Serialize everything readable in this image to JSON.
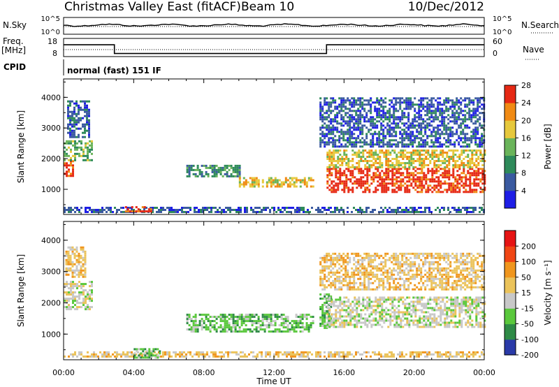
{
  "header": {
    "title": "Christmas Valley East (fitACF)",
    "beam": "Beam 10",
    "date": "10/Dec/2012"
  },
  "status_panels": {
    "nsky_label": "N.Sky",
    "nsky_ticks": [
      "10^5",
      "10^0"
    ],
    "nsearch_label": "N.Search",
    "nsearch_ticks": [
      "10^5",
      "10^0"
    ],
    "freq_label": "Freq.",
    "freq_unit": "[MHz]",
    "freq_ticks": [
      "18",
      "8"
    ],
    "nave_label": "Nave",
    "nave_ticks": [
      "60",
      "0"
    ],
    "cpid_label": "CPID",
    "cpid_value": "normal (fast) 151 IF",
    "freq_steps": [
      {
        "time": 0,
        "freq": 14.5
      },
      {
        "time": 2.9,
        "freq": 9.7
      },
      {
        "time": 15.0,
        "freq": 14.5
      },
      {
        "time": 24,
        "freq": 14.5
      }
    ]
  },
  "chart_data": [
    {
      "type": "heatmap",
      "parameter": "power",
      "xlabel": "Time UT",
      "ylabel": "Slant Range [km]",
      "xlim": [
        0,
        24
      ],
      "ylim": [
        180,
        4600
      ],
      "y_ticks": [
        1000,
        2000,
        3000,
        4000
      ],
      "colorbar_label": "Power [dB]",
      "colorbar_ticks": [
        "4",
        "8",
        "12",
        "16",
        "20",
        "24",
        "28"
      ],
      "colorbar_colors": [
        "#1e1ee6",
        "#3a5aa0",
        "#2e8a5a",
        "#6ab45a",
        "#e6c83c",
        "#f08a14",
        "#e62814"
      ],
      "regions": [
        {
          "t0": 0.0,
          "t1": 0.5,
          "r0": 1450,
          "r1": 1950,
          "level": 6
        },
        {
          "t0": 0.0,
          "t1": 1.6,
          "r0": 1950,
          "r1": 2600,
          "level": 3
        },
        {
          "t0": 0.2,
          "t1": 1.5,
          "r0": 2700,
          "r1": 3900,
          "level": 1
        },
        {
          "t0": 0.0,
          "t1": 24.0,
          "r0": 250,
          "r1": 430,
          "level": 1
        },
        {
          "t0": 3.5,
          "t1": 5.0,
          "r0": 250,
          "r1": 450,
          "level": 6
        },
        {
          "t0": 7.0,
          "t1": 10.0,
          "r0": 1450,
          "r1": 1800,
          "level": 2
        },
        {
          "t0": 10.0,
          "t1": 14.2,
          "r0": 1100,
          "r1": 1400,
          "level": 4
        },
        {
          "t0": 15.0,
          "t1": 24.0,
          "r0": 900,
          "r1": 1700,
          "level": 6
        },
        {
          "t0": 15.0,
          "t1": 24.0,
          "r0": 1700,
          "r1": 2300,
          "level": 4
        },
        {
          "t0": 14.6,
          "t1": 24.0,
          "r0": 2400,
          "r1": 4000,
          "level": 1
        }
      ]
    },
    {
      "type": "heatmap",
      "parameter": "velocity",
      "xlabel": "Time UT",
      "ylabel": "Slant Range [km]",
      "xlim": [
        0,
        24
      ],
      "ylim": [
        180,
        4600
      ],
      "y_ticks": [
        1000,
        2000,
        3000,
        4000
      ],
      "colorbar_label": "Velocity [m s⁻¹]",
      "colorbar_ticks": [
        "200",
        "100",
        "50",
        "15",
        "-15",
        "-50",
        "-100",
        "-200"
      ],
      "colorbar_colors": [
        "#2a3aa8",
        "#2e8a46",
        "#5ac83c",
        "#c8c8c8",
        "#ebc35a",
        "#f0961e",
        "#f04614",
        "#e61414"
      ],
      "regions": [
        {
          "t0": 0.0,
          "t1": 1.6,
          "r0": 1800,
          "r1": 2700,
          "level": 3
        },
        {
          "t0": 0.1,
          "t1": 1.2,
          "r0": 2800,
          "r1": 3800,
          "level": 4
        },
        {
          "t0": 0.0,
          "t1": 24.0,
          "r0": 250,
          "r1": 450,
          "level": 4
        },
        {
          "t0": 4.0,
          "t1": 5.5,
          "r0": 250,
          "r1": 550,
          "level": 2
        },
        {
          "t0": 7.0,
          "t1": 14.2,
          "r0": 1100,
          "r1": 1650,
          "level": 2
        },
        {
          "t0": 14.6,
          "t1": 15.3,
          "r0": 1200,
          "r1": 2300,
          "level": 2
        },
        {
          "t0": 15.0,
          "t1": 24.0,
          "r0": 1200,
          "r1": 2200,
          "level": 3
        },
        {
          "t0": 14.6,
          "t1": 24.0,
          "r0": 2400,
          "r1": 3600,
          "level": 4
        }
      ]
    }
  ],
  "x_ticks": [
    "00:00",
    "04:00",
    "08:00",
    "12:00",
    "16:00",
    "20:00",
    "00:00"
  ]
}
